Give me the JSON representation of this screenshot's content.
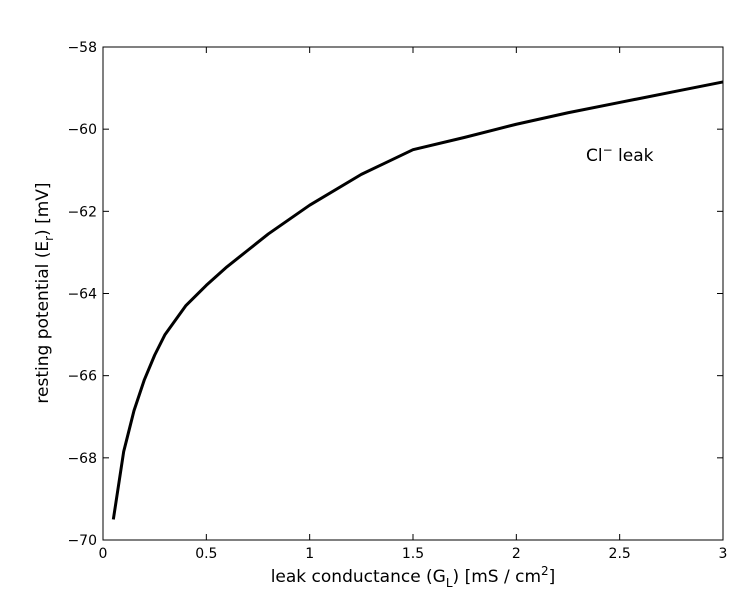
{
  "chart_data": {
    "type": "line",
    "xlabel": [
      "leak conductance (G",
      "L",
      ") [mS / cm",
      "2",
      "]"
    ],
    "ylabel": [
      "resting potential (E",
      "r",
      ") [mV]"
    ],
    "annotation": [
      "Cl",
      "−",
      " leak"
    ],
    "x": [
      0.05,
      0.1,
      0.15,
      0.2,
      0.25,
      0.3,
      0.4,
      0.5,
      0.6,
      0.7,
      0.8,
      0.9,
      1.0,
      1.25,
      1.5,
      1.75,
      2.0,
      2.25,
      2.5,
      2.75,
      3.0
    ],
    "series": [
      {
        "color": "#000000",
        "values": [
          -69.5,
          -67.85,
          -66.85,
          -66.1,
          -65.5,
          -65.0,
          -64.3,
          -63.8,
          -63.35,
          -62.95,
          -62.55,
          -62.2,
          -61.85,
          -61.1,
          -60.5,
          -60.2,
          -59.88,
          -59.6,
          -59.35,
          -59.1,
          -58.85
        ]
      }
    ],
    "xlim": [
      0,
      3
    ],
    "xticks": [
      0,
      0.5,
      1,
      1.5,
      2,
      2.5,
      3
    ],
    "ylim": [
      -70,
      -58
    ],
    "yticks": [
      {
        "value": -70,
        "label": "−70"
      },
      {
        "value": -68,
        "label": "−68"
      },
      {
        "value": -66,
        "label": "−66"
      },
      {
        "value": -64,
        "label": "−64"
      },
      {
        "value": -62,
        "label": "−62"
      },
      {
        "value": -60,
        "label": "−60"
      },
      {
        "value": -58,
        "label": "−58"
      }
    ],
    "grid": false
  }
}
